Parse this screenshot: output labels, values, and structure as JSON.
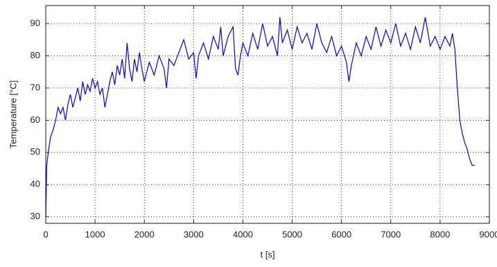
{
  "chart_data": {
    "type": "line",
    "x_label": "t [s]",
    "y_label": "Temperature [°C]",
    "x": [
      0,
      20,
      50,
      100,
      150,
      200,
      250,
      300,
      350,
      400,
      450,
      500,
      550,
      600,
      650,
      700,
      750,
      800,
      850,
      900,
      950,
      1000,
      1050,
      1100,
      1150,
      1200,
      1250,
      1300,
      1350,
      1400,
      1450,
      1500,
      1550,
      1600,
      1650,
      1700,
      1750,
      1800,
      1850,
      1900,
      1950,
      2000,
      2100,
      2200,
      2300,
      2400,
      2450,
      2500,
      2600,
      2700,
      2800,
      2900,
      3000,
      3050,
      3100,
      3200,
      3300,
      3400,
      3500,
      3550,
      3600,
      3700,
      3800,
      3850,
      3900,
      3950,
      4000,
      4100,
      4200,
      4300,
      4400,
      4500,
      4600,
      4700,
      4750,
      4800,
      4900,
      5000,
      5100,
      5200,
      5300,
      5400,
      5500,
      5600,
      5700,
      5800,
      5900,
      6000,
      6100,
      6150,
      6200,
      6300,
      6400,
      6500,
      6600,
      6700,
      6800,
      6900,
      7000,
      7100,
      7200,
      7300,
      7400,
      7500,
      7600,
      7700,
      7800,
      7900,
      8000,
      8100,
      8200,
      8250,
      8300,
      8350,
      8400,
      8450,
      8500,
      8550,
      8600,
      8650,
      8700
    ],
    "series": [
      {
        "name": "Temperature",
        "color": "#0000ee",
        "values": [
          30,
          46,
          50,
          55,
          57,
          60,
          64,
          62,
          64,
          60,
          65,
          68,
          64,
          67,
          70,
          66,
          72,
          68,
          71,
          69,
          73,
          70,
          72,
          68,
          70,
          64,
          68,
          72,
          75,
          71,
          77,
          74,
          79,
          73,
          84,
          76,
          72,
          79,
          75,
          81,
          76,
          72,
          78,
          74,
          80,
          76,
          70,
          79,
          77,
          81,
          85,
          79,
          81,
          73,
          80,
          84,
          79,
          86,
          82,
          89,
          80,
          86,
          89,
          76,
          74,
          80,
          84,
          80,
          87,
          82,
          90,
          83,
          86,
          80,
          92,
          84,
          88,
          82,
          89,
          84,
          87,
          82,
          90,
          84,
          81,
          86,
          80,
          83,
          78,
          72,
          77,
          84,
          80,
          86,
          82,
          89,
          83,
          88,
          84,
          90,
          83,
          87,
          82,
          89,
          84,
          92,
          83,
          86,
          82,
          86,
          83,
          87,
          82,
          70,
          60,
          56,
          53,
          51,
          48,
          46,
          46
        ]
      }
    ],
    "xlim": [
      0,
      9000
    ],
    "ylim": [
      28,
      95.6
    ],
    "xticks": [
      0,
      1000,
      2000,
      3000,
      4000,
      5000,
      6000,
      7000,
      8000,
      9000
    ],
    "yticks": [
      30,
      40,
      50,
      60,
      70,
      80,
      90
    ],
    "grid": true
  }
}
